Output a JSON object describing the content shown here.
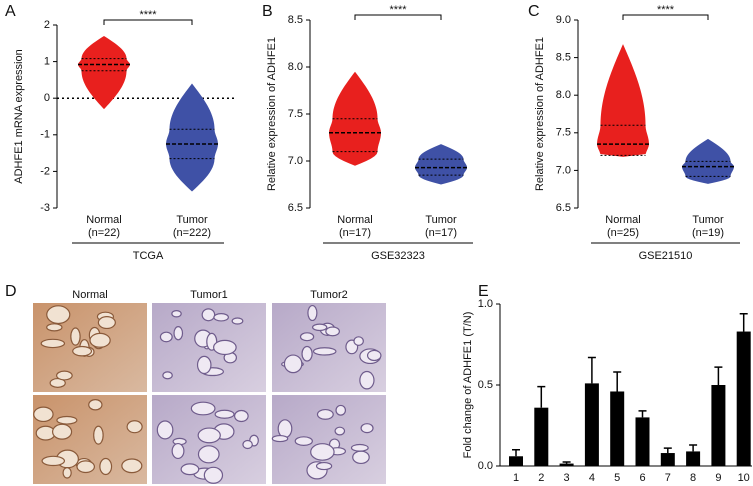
{
  "chart_data": [
    {
      "type": "violin",
      "panel": "A",
      "ylabel": "ADHFE1 mRNA expression",
      "categories": [
        "Normal",
        "Tumor"
      ],
      "category_notes": [
        "(n=22)",
        "(n=222)"
      ],
      "group_label": "TCGA",
      "significance": "****",
      "ref_line": 0,
      "series": [
        {
          "name": "Normal",
          "color": "#e8201e",
          "min": -0.3,
          "q1": 0.75,
          "median": 0.92,
          "q3": 1.08,
          "max": 1.7
        },
        {
          "name": "Tumor",
          "color": "#3f51a6",
          "min": -2.55,
          "q1": -1.65,
          "median": -1.25,
          "q3": -0.85,
          "max": 0.4
        }
      ],
      "ylim": [
        -3,
        2
      ],
      "yticks": [
        -3,
        -2,
        -1,
        0,
        1,
        2
      ]
    },
    {
      "type": "violin",
      "panel": "B",
      "ylabel": "Relative expression of ADHFE1",
      "categories": [
        "Normal",
        "Tumor"
      ],
      "category_notes": [
        "(n=17)",
        "(n=17)"
      ],
      "group_label": "GSE32323",
      "significance": "****",
      "series": [
        {
          "name": "Normal",
          "color": "#e8201e",
          "min": 6.95,
          "q1": 7.1,
          "median": 7.3,
          "q3": 7.45,
          "max": 7.95
        },
        {
          "name": "Tumor",
          "color": "#3f51a6",
          "min": 6.75,
          "q1": 6.85,
          "median": 6.93,
          "q3": 7.02,
          "max": 7.18
        }
      ],
      "ylim": [
        6.5,
        8.5
      ],
      "yticks": [
        6.5,
        {
          "value": 7,
          "label": "7.0"
        },
        7.5,
        {
          "value": 8,
          "label": "8.0"
        },
        8.5
      ]
    },
    {
      "type": "violin",
      "panel": "C",
      "ylabel": "Relative expression of ADHFE1",
      "categories": [
        "Normal",
        "Tumor"
      ],
      "category_notes": [
        "(n=25)",
        "(n=19)"
      ],
      "group_label": "GSE21510",
      "significance": "****",
      "series": [
        {
          "name": "Normal",
          "color": "#e8201e",
          "min": 7.18,
          "q1": 7.2,
          "median": 7.35,
          "q3": 7.6,
          "max": 8.68
        },
        {
          "name": "Tumor",
          "color": "#3f51a6",
          "min": 6.82,
          "q1": 6.92,
          "median": 7.05,
          "q3": 7.12,
          "max": 7.42
        }
      ],
      "ylim": [
        6.5,
        9
      ],
      "yticks": [
        6.5,
        {
          "value": 7,
          "label": "7.0"
        },
        7.5,
        {
          "value": 8,
          "label": "8.0"
        },
        8.5,
        {
          "value": 9,
          "label": "9.0"
        }
      ]
    },
    {
      "type": "bar",
      "panel": "E",
      "ylabel": "Fold change of ADHFE1 (T/N)",
      "color": "#000000",
      "categories": [
        "1",
        "2",
        "3",
        "4",
        "5",
        "6",
        "7",
        "8",
        "9",
        "10"
      ],
      "values": [
        0.06,
        0.36,
        0.015,
        0.51,
        0.46,
        0.3,
        0.08,
        0.09,
        0.5,
        0.83
      ],
      "errors": [
        0.04,
        0.13,
        0.01,
        0.16,
        0.12,
        0.04,
        0.03,
        0.04,
        0.11,
        0.11
      ],
      "ylim": [
        0,
        1
      ],
      "yticks": [
        {
          "value": 0,
          "label": "0.0"
        },
        0.5,
        {
          "value": 1,
          "label": "1.0"
        }
      ]
    }
  ],
  "images": {
    "panel": "D",
    "columns": [
      "Normal",
      "Tumor1",
      "Tumor2"
    ]
  }
}
